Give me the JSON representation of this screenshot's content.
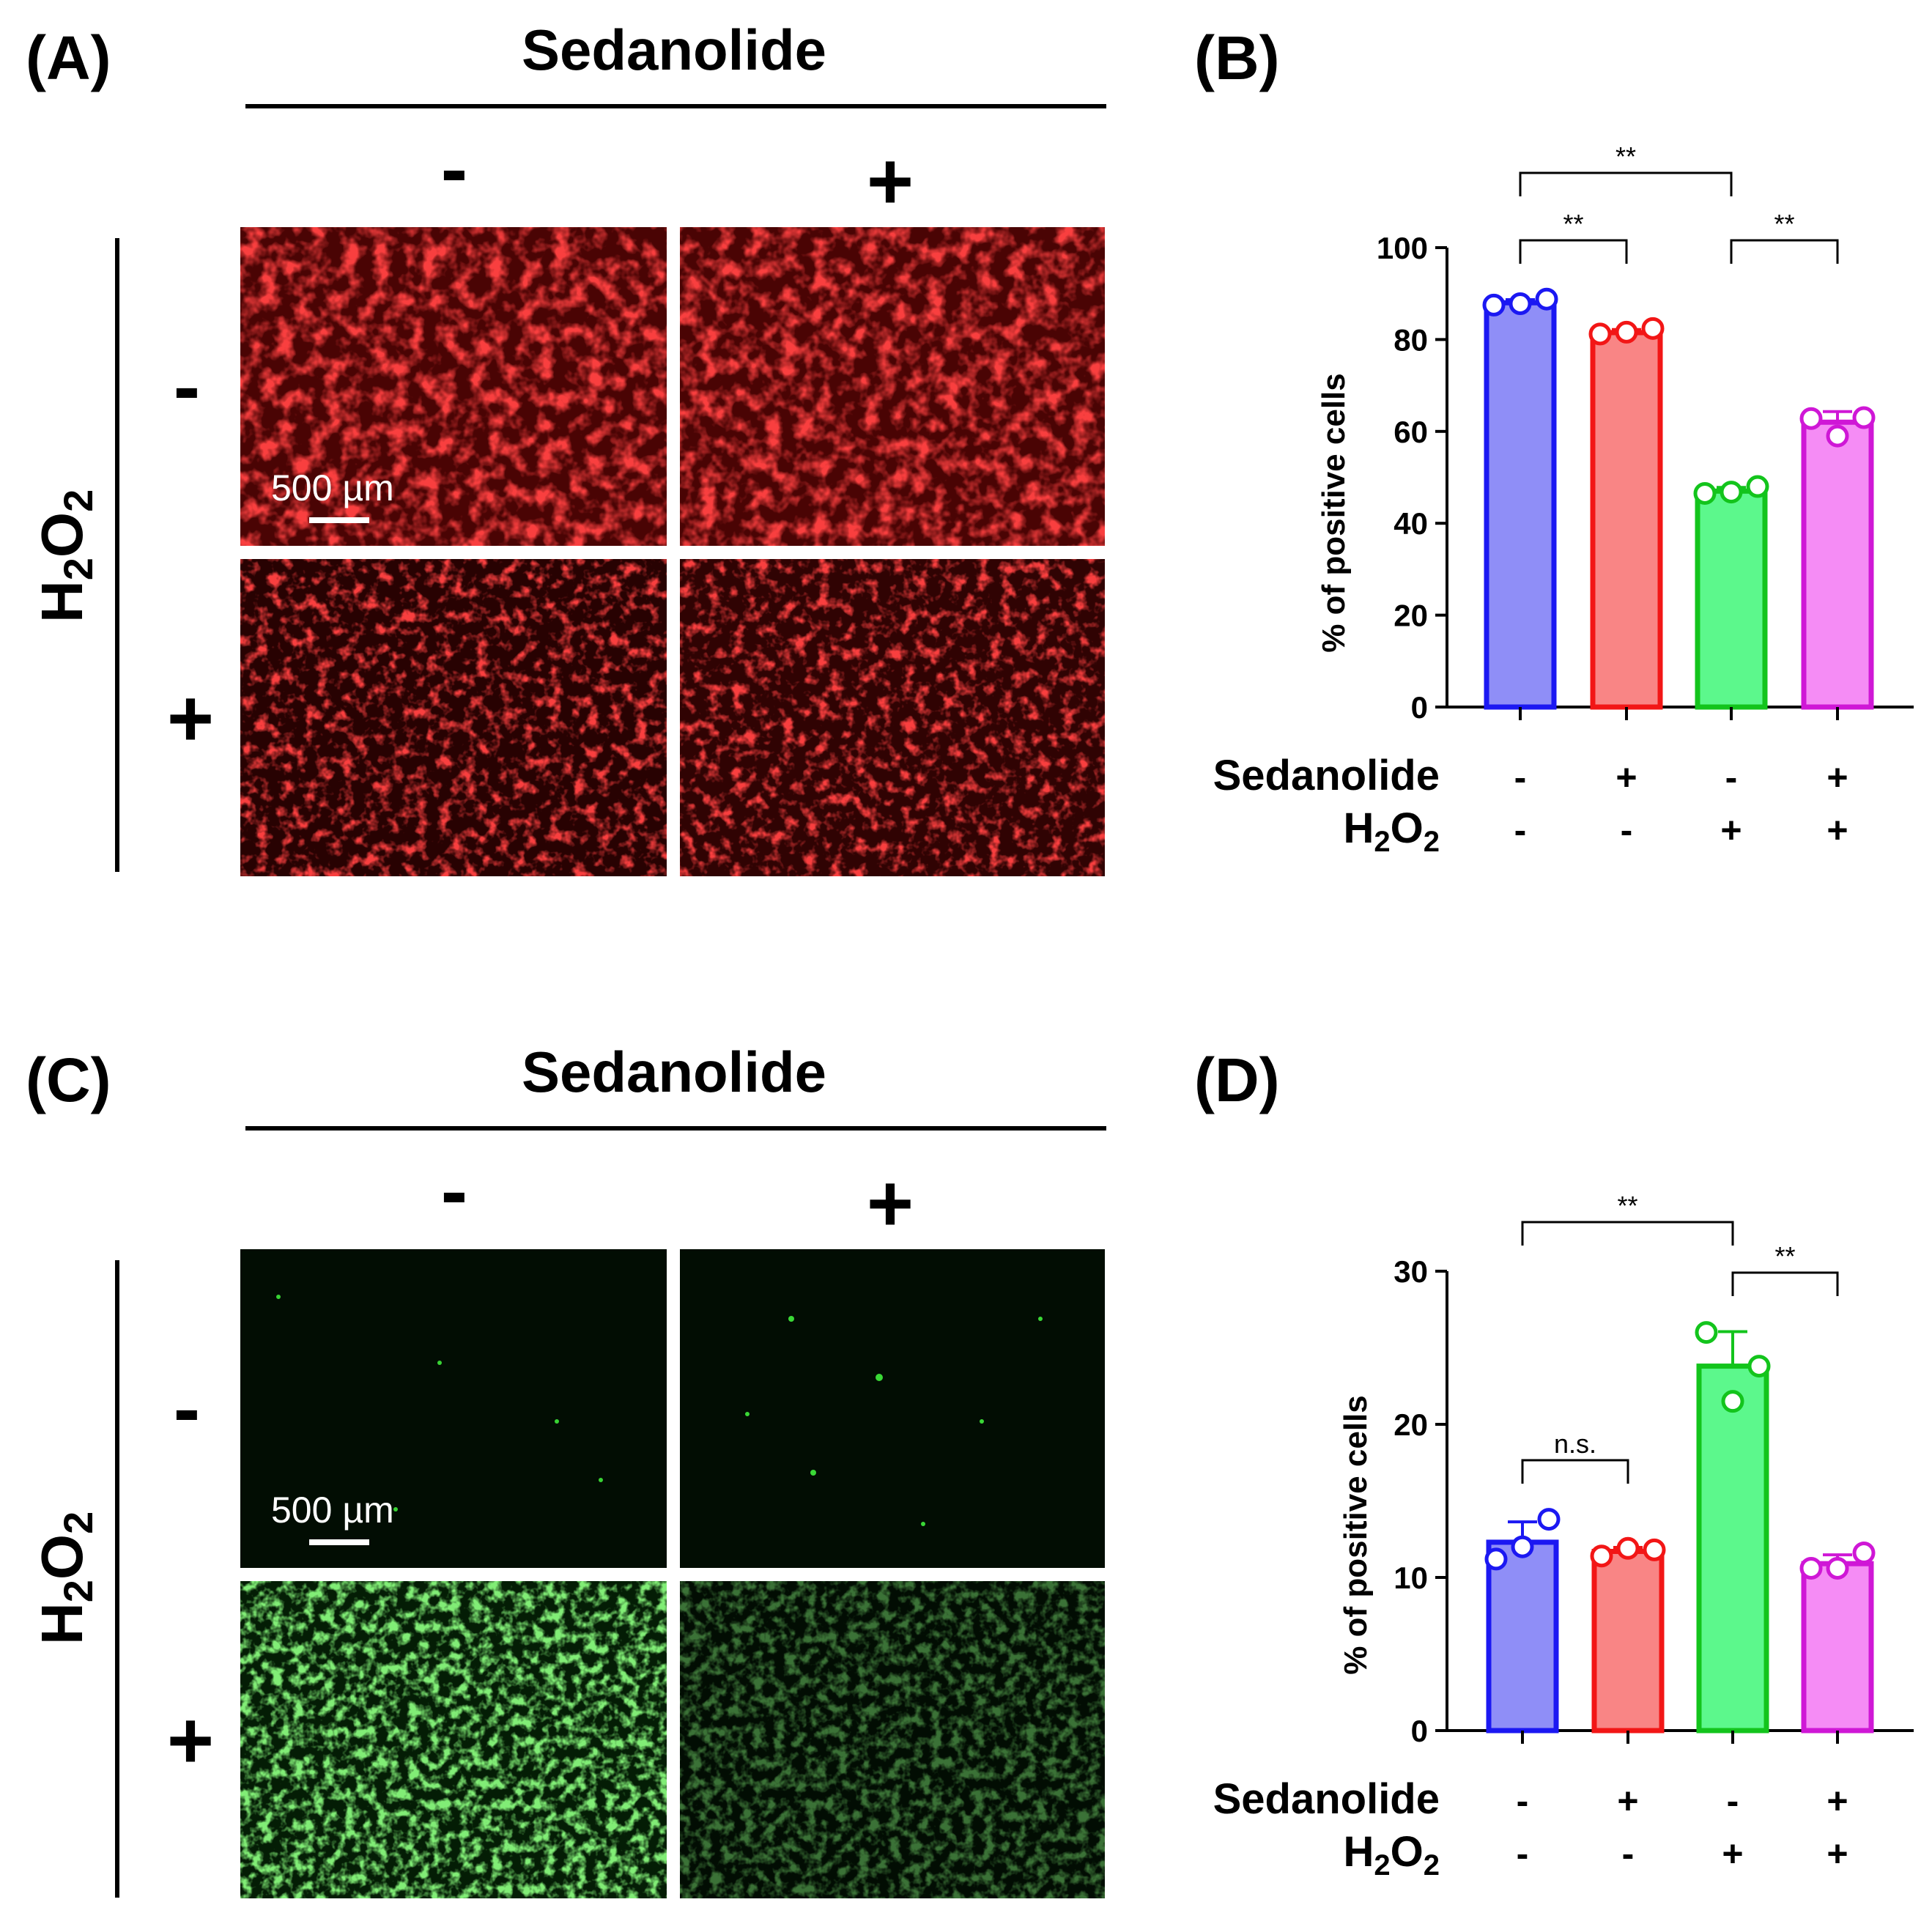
{
  "figure": {
    "panel_labels": [
      "(A)",
      "(B)",
      "(C)",
      "(D)"
    ],
    "image_panels": [
      {
        "label": "(A)",
        "title": "Sedanolide",
        "column_signs": [
          "-",
          "+"
        ],
        "row_signs": [
          "-",
          "+"
        ],
        "side_label": "H2O2",
        "scale_bar_text": "500 µm",
        "stain_color": "#e8141e"
      },
      {
        "label": "(C)",
        "title": "Sedanolide",
        "column_signs": [
          "-",
          "+"
        ],
        "row_signs": [
          "-",
          "+"
        ],
        "side_label": "H2O2",
        "scale_bar_text": "500 µm",
        "stain_color": "#2fd42a"
      }
    ]
  },
  "chart_data": [
    {
      "panel": "(B)",
      "type": "bar",
      "ylabel": "% of positive cells",
      "ylim": [
        0,
        100
      ],
      "yticks": [
        0,
        20,
        40,
        60,
        80,
        100
      ],
      "groups": [
        {
          "sedanolide": "-",
          "h2o2": "-",
          "mean": 88,
          "points": [
            87.5,
            88.8,
            87.8
          ],
          "fill": "#8f8ef7",
          "stroke": "#1b18f2"
        },
        {
          "sedanolide": "+",
          "h2o2": "-",
          "mean": 81.5,
          "points": [
            81.2,
            82.4,
            81.6
          ],
          "fill": "#f98585",
          "stroke": "#f21616"
        },
        {
          "sedanolide": "-",
          "h2o2": "+",
          "mean": 47,
          "points": [
            46.5,
            48.0,
            46.8
          ],
          "fill": "#5cf88c",
          "stroke": "#13c41c"
        },
        {
          "sedanolide": "+",
          "h2o2": "+",
          "mean": 62,
          "points": [
            62.8,
            63.0,
            59.0
          ],
          "fill": "#f58cf5",
          "stroke": "#cf17d6"
        }
      ],
      "row_labels": [
        "Sedanolide",
        "H2O2"
      ],
      "significance": [
        {
          "from": 0,
          "to": 1,
          "text": "**",
          "level": 1
        },
        {
          "from": 0,
          "to": 2,
          "text": "**",
          "level": 2
        },
        {
          "from": 2,
          "to": 3,
          "text": "**",
          "level": 1
        }
      ]
    },
    {
      "panel": "(D)",
      "type": "bar",
      "ylabel": "% of positive cells",
      "ylim": [
        0,
        30
      ],
      "yticks": [
        0,
        10,
        20,
        30
      ],
      "groups": [
        {
          "sedanolide": "-",
          "h2o2": "-",
          "mean": 12.3,
          "points": [
            11.2,
            13.8,
            12.0
          ],
          "fill": "#8f8ef7",
          "stroke": "#1b18f2"
        },
        {
          "sedanolide": "+",
          "h2o2": "-",
          "mean": 11.7,
          "points": [
            11.4,
            11.8,
            11.9
          ],
          "fill": "#f98585",
          "stroke": "#f21616"
        },
        {
          "sedanolide": "-",
          "h2o2": "+",
          "mean": 23.8,
          "points": [
            26.0,
            23.8,
            21.5
          ],
          "fill": "#5cf88c",
          "stroke": "#13c41c"
        },
        {
          "sedanolide": "+",
          "h2o2": "+",
          "mean": 10.9,
          "points": [
            10.6,
            11.6,
            10.6
          ],
          "fill": "#f58cf5",
          "stroke": "#cf17d6"
        }
      ],
      "row_labels": [
        "Sedanolide",
        "H2O2"
      ],
      "significance": [
        {
          "from": 0,
          "to": 1,
          "text": "n.s.",
          "level": 1
        },
        {
          "from": 0,
          "to": 2,
          "text": "**",
          "level": 3
        },
        {
          "from": 2,
          "to": 3,
          "text": "**",
          "level": 2
        }
      ]
    }
  ]
}
